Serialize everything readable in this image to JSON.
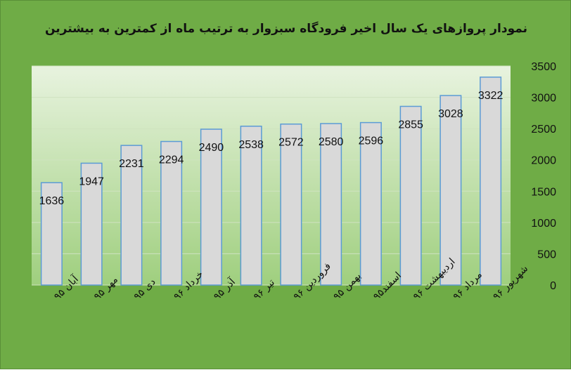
{
  "chart_data": {
    "type": "bar",
    "title": "نمودار  پروازهای یک سال اخیر فرودگاه سبزوار به ترتیب ماه  از کمترین به بیشترین",
    "categories": [
      "آبان ۹۵",
      "مهر ۹۵",
      "دی ۹۵",
      "خرداد ۹۶",
      "آذر ۹۵",
      "تیر ۹۶",
      "فروردین ۹۶",
      "بهمن ۹۵",
      "اسفند۹۵",
      "اردیبهشت ۹۶",
      "مرداد ۹۶",
      "شهریور ۹۶"
    ],
    "values": [
      1636,
      1947,
      2231,
      2294,
      2490,
      2538,
      2572,
      2580,
      2596,
      2855,
      3028,
      3322
    ],
    "ylim": [
      0,
      3500
    ],
    "yticks": [
      0,
      500,
      1000,
      1500,
      2000,
      2500,
      3000,
      3500
    ],
    "y_axis_position": "right",
    "grid": true,
    "legend": "none",
    "colors": {
      "background": "#6fac46",
      "plot_top": "#e8f3df",
      "plot_bottom": "#9fcf7e",
      "bar_fill": "#d9d9d9",
      "bar_stroke": "#5b9bd5",
      "gridline": "#cfe3c0"
    }
  }
}
